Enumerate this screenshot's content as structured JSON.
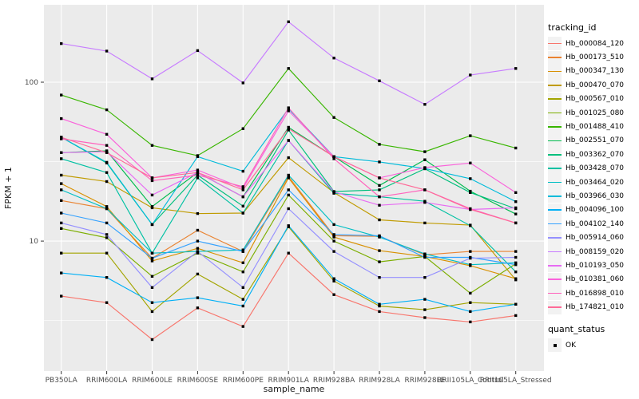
{
  "figure": {
    "background": "#FFFFFF",
    "panel_background": "#EBEBEB",
    "grid_color": "#FFFFFF",
    "tick_label_color": "#4D4D4D",
    "axis_title_color": "#1A1A1A",
    "marker_color": "#000000"
  },
  "axes": {
    "x_title": "sample_name",
    "y_title": "FPKM + 1",
    "y_tick_labels": [
      "100",
      "10"
    ],
    "y_tick_values": [
      100,
      10
    ]
  },
  "legend": {
    "tracking_title": "tracking_id",
    "quant_title": "quant_status",
    "quant_items": [
      {
        "label": "OK",
        "symbol": "black-square"
      }
    ],
    "key_background": "#F2F2F2"
  },
  "chart_data": {
    "type": "line",
    "title": "",
    "xlabel": "sample_name",
    "ylabel": "FPKM + 1",
    "y_scale": "log10",
    "ylim": [
      1.52,
      307
    ],
    "y_major_gridlines": [
      10,
      100
    ],
    "y_minor_gridlines": [
      3.162,
      31.62
    ],
    "legend_position": "right",
    "marker": "black-square",
    "grid": true,
    "categories": [
      "PB350LA",
      "RRIM600LA",
      "RRIM600LE",
      "RRIM600SE",
      "RRIM600PE",
      "RRIM901LA",
      "RRIM928BA",
      "RRIM928LA",
      "RRIM928LE",
      "RRII105LA_Control",
      "RRII105LA_Stressed"
    ],
    "series": [
      {
        "name": "Hb_000084_120",
        "color": "#F8766D",
        "values": [
          4.5,
          4.1,
          2.4,
          3.8,
          2.9,
          8.4,
          4.6,
          3.6,
          3.3,
          3.1,
          3.4
        ]
      },
      {
        "name": "Hb_000173_510",
        "color": "#EA8331",
        "values": [
          18,
          16,
          7.8,
          11.7,
          8.6,
          25.5,
          10.8,
          10.7,
          8.2,
          8.6,
          8.6
        ]
      },
      {
        "name": "Hb_000347_130",
        "color": "#D89000",
        "values": [
          23,
          16.5,
          7.5,
          9.0,
          7.3,
          25,
          10.6,
          8.7,
          8.0,
          7.0,
          5.8
        ]
      },
      {
        "name": "Hb_000470_070",
        "color": "#C09B00",
        "values": [
          26,
          23.7,
          16.2,
          14.9,
          15,
          33.5,
          20.2,
          13.6,
          13,
          12.6,
          5.7
        ]
      },
      {
        "name": "Hb_000567_010",
        "color": "#A3A500",
        "values": [
          8.4,
          8.4,
          3.6,
          6.2,
          4.3,
          12.3,
          5.6,
          3.9,
          3.7,
          4.1,
          4.0
        ]
      },
      {
        "name": "Hb_001025_080",
        "color": "#7CAE00",
        "values": [
          12,
          10.5,
          6.0,
          8.4,
          6.4,
          19.5,
          10,
          7.4,
          8.0,
          4.7,
          7.2
        ]
      },
      {
        "name": "Hb_001488_410",
        "color": "#39B600",
        "values": [
          83,
          67,
          40,
          34.5,
          51,
          122,
          60,
          40.6,
          36.5,
          46,
          38.5
        ]
      },
      {
        "name": "Hb_002551_070",
        "color": "#00BB4E",
        "values": [
          36,
          37,
          16.5,
          27,
          19,
          52,
          34,
          22.4,
          32.5,
          20.6,
          14.8
        ]
      },
      {
        "name": "Hb_003362_070",
        "color": "#00BF7D",
        "values": [
          45,
          31,
          12.7,
          26,
          16.6,
          50,
          20.5,
          21,
          28.5,
          20.2,
          16
        ]
      },
      {
        "name": "Hb_003428_070",
        "color": "#00C1A3",
        "values": [
          33,
          27,
          8.4,
          25,
          15,
          43,
          20,
          19,
          17.8,
          12.5,
          6.4
        ]
      },
      {
        "name": "Hb_003464_020",
        "color": "#00BFC4",
        "values": [
          21,
          16,
          8.4,
          8.6,
          8.8,
          26,
          12.7,
          10.6,
          8.3,
          7.1,
          7.3
        ]
      },
      {
        "name": "Hb_003966_030",
        "color": "#00BBDA",
        "values": [
          45,
          31.3,
          12.7,
          34,
          27.5,
          68,
          34,
          31.5,
          28.6,
          24.7,
          17.7
        ]
      },
      {
        "name": "Hb_004096_100",
        "color": "#00B0F6",
        "values": [
          6.3,
          5.9,
          4.1,
          4.4,
          3.9,
          12.5,
          5.8,
          4.0,
          4.3,
          3.6,
          4.0
        ]
      },
      {
        "name": "Hb_004102_140",
        "color": "#35A2FF",
        "values": [
          15,
          13,
          7.8,
          10,
          8.6,
          21,
          11,
          10.8,
          7.9,
          7.9,
          7.1
        ]
      },
      {
        "name": "Hb_005914_060",
        "color": "#9590FF",
        "values": [
          13,
          11,
          5.1,
          8.6,
          5.1,
          16,
          8.6,
          5.9,
          5.9,
          7.8,
          7.9
        ]
      },
      {
        "name": "Hb_008159_020",
        "color": "#C77CFF",
        "values": [
          175,
          157,
          105,
          158,
          99,
          240,
          142,
          102,
          72.5,
          111,
          122
        ]
      },
      {
        "name": "Hb_010193_050",
        "color": "#E76BF3",
        "values": [
          36,
          36.5,
          19.5,
          27,
          19,
          43,
          20.4,
          16.8,
          17.5,
          15.8,
          16.2
        ]
      },
      {
        "name": "Hb_010381_060",
        "color": "#FA62DB",
        "values": [
          59,
          47,
          25,
          28,
          21.5,
          66,
          34,
          25,
          29,
          31,
          20.2
        ]
      },
      {
        "name": "Hb_016898_010",
        "color": "#FF62BC",
        "values": [
          44,
          40,
          24,
          26,
          22,
          69,
          33,
          19,
          21,
          16,
          13
        ]
      },
      {
        "name": "Hb_174821_010",
        "color": "#FF6A98",
        "values": [
          45,
          36,
          25,
          27,
          21,
          51,
          34,
          25,
          21,
          15.8,
          13
        ]
      }
    ]
  }
}
